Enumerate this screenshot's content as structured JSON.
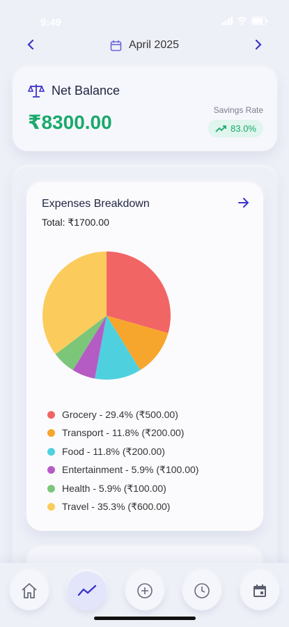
{
  "status_bar": {
    "time": "9:49"
  },
  "month_nav": {
    "label": "April 2025",
    "prev_icon": "chevron-left-icon",
    "next_icon": "chevron-right-icon",
    "calendar_icon": "calendar-icon"
  },
  "balance": {
    "title": "Net Balance",
    "icon": "scale-icon",
    "value": "₹8300.00",
    "savings_label": "Savings Rate",
    "savings_value": "83.0%",
    "trend_icon": "trending-up-icon"
  },
  "expenses": {
    "title": "Expenses Breakdown",
    "total": "Total: ₹1700.00",
    "arrow_icon": "arrow-right-icon",
    "legend": [
      {
        "label": "Grocery - 29.4% (₹500.00)",
        "color": "#f26565"
      },
      {
        "label": "Transport - 11.8% (₹200.00)",
        "color": "#f6a62c"
      },
      {
        "label": "Food - 11.8% (₹200.00)",
        "color": "#4fd0df"
      },
      {
        "label": "Entertainment - 5.9% (₹100.00)",
        "color": "#b55cc4"
      },
      {
        "label": "Health - 5.9% (₹100.00)",
        "color": "#7cc67a"
      },
      {
        "label": "Travel - 35.3% (₹600.00)",
        "color": "#fbcc5c"
      }
    ]
  },
  "chart_data": {
    "type": "pie",
    "title": "Expenses Breakdown",
    "categories": [
      "Grocery",
      "Transport",
      "Food",
      "Entertainment",
      "Health",
      "Travel"
    ],
    "values": [
      500,
      200,
      200,
      100,
      100,
      600
    ],
    "colors": [
      "#f26565",
      "#f6a62c",
      "#4fd0df",
      "#b55cc4",
      "#7cc67a",
      "#fbcc5c"
    ]
  },
  "bottom_nav": [
    {
      "name": "home",
      "icon": "home-icon",
      "active": false
    },
    {
      "name": "stats",
      "icon": "trending-icon",
      "active": true
    },
    {
      "name": "add",
      "icon": "plus-circle-icon",
      "active": false
    },
    {
      "name": "history",
      "icon": "clock-icon",
      "active": false
    },
    {
      "name": "calendar",
      "icon": "calendar-icon",
      "active": false
    }
  ]
}
